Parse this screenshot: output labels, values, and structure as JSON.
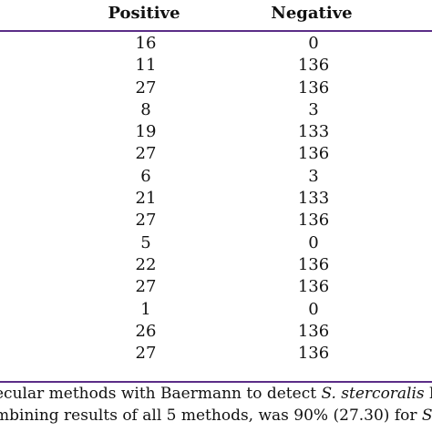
{
  "table": {
    "headers": {
      "positive": "Positive",
      "negative": "Negative"
    },
    "rows": [
      {
        "positive": "16",
        "negative": "0"
      },
      {
        "positive": "11",
        "negative": "136"
      },
      {
        "positive": "27",
        "negative": "136"
      },
      {
        "positive": "8",
        "negative": "3"
      },
      {
        "positive": "19",
        "negative": "133"
      },
      {
        "positive": "27",
        "negative": "136"
      },
      {
        "positive": "6",
        "negative": "3"
      },
      {
        "positive": "21",
        "negative": "133"
      },
      {
        "positive": "27",
        "negative": "136"
      },
      {
        "positive": "5",
        "negative": "0"
      },
      {
        "positive": "22",
        "negative": "136"
      },
      {
        "positive": "27",
        "negative": "136"
      },
      {
        "positive": "1",
        "negative": "0"
      },
      {
        "positive": "26",
        "negative": "136"
      },
      {
        "positive": "27",
        "negative": "136"
      }
    ]
  },
  "caption": {
    "line1_a": "ecular methods with Baermann to detect ",
    "line1_italic": "S. stercoralis",
    "line1_b": " la",
    "line2_a": "mbining results of all 5 methods, was 90% (27.30) for ",
    "line2_italic": "S"
  },
  "colors": {
    "rule": "#5b2d87",
    "text": "#111111"
  }
}
